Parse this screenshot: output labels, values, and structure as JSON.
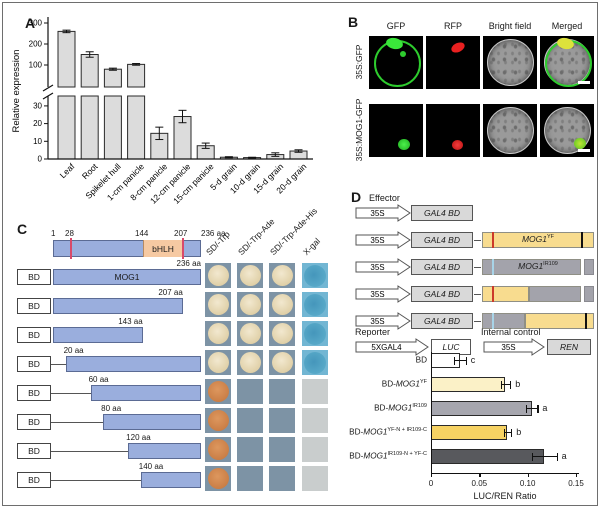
{
  "panel_a": {
    "label": "A",
    "ylabel": "Relative expression",
    "upper_ticks": [
      100,
      200,
      300
    ],
    "lower_ticks": [
      0,
      10,
      20,
      30
    ],
    "categories": [
      "Leaf",
      "Root",
      "Spikelet hull",
      "1-cm panicle",
      "8-cm panicle",
      "12-cm panicle",
      "15-cm panicle",
      "5-d grain",
      "10-d grain",
      "15-d grain",
      "20-d grain"
    ],
    "values": [
      260,
      150,
      80,
      103,
      14.5,
      24,
      7.5,
      1,
      0.8,
      2.5,
      4.5
    ],
    "errors": [
      6,
      13,
      5,
      4,
      3.5,
      3.5,
      1.5,
      0.3,
      0.2,
      1,
      0.7
    ],
    "bar_color": "#dcdcdc"
  },
  "panel_b": {
    "label": "B",
    "col_headers": [
      "GFP",
      "RFP",
      "Bright field",
      "Merged"
    ],
    "row_labels": [
      "35S:GFP",
      "35S:MOG1-GFP"
    ]
  },
  "panel_c": {
    "label": "C",
    "protein": {
      "pos_labels": [
        "1",
        "28",
        "144",
        "207"
      ],
      "end_label": "236 aa",
      "domain_label": "bHLH"
    },
    "media_headers": [
      "SD/-Trp",
      "SD/-Trp-Ade",
      "SD/-Trp-Ade-His",
      "X-gal"
    ],
    "constructs": [
      {
        "bd": "BD",
        "bar_label": "MOG1",
        "aa_label": "236 aa",
        "start": 0,
        "end": 1,
        "spots": [
          "cream",
          "cream",
          "cream",
          "xgal-pos"
        ]
      },
      {
        "bd": "BD",
        "bar_label": "",
        "aa_label": "207 aa",
        "start": 0,
        "end": 0.877,
        "spots": [
          "cream",
          "cream",
          "cream",
          "xgal-pos"
        ]
      },
      {
        "bd": "BD",
        "bar_label": "",
        "aa_label": "143 aa",
        "start": 0,
        "end": 0.606,
        "spots": [
          "cream",
          "cream",
          "cream",
          "xgal-pos"
        ]
      },
      {
        "bd": "BD",
        "bar_label": "",
        "aa_label": "20 aa",
        "start": 0.085,
        "end": 1,
        "spots": [
          "cream",
          "cream",
          "cream",
          "xgal-pos"
        ]
      },
      {
        "bd": "BD",
        "bar_label": "",
        "aa_label": "60 aa",
        "start": 0.254,
        "end": 1,
        "spots": [
          "orange",
          "none",
          "none",
          "xgal-neg"
        ]
      },
      {
        "bd": "BD",
        "bar_label": "",
        "aa_label": "80 aa",
        "start": 0.339,
        "end": 1,
        "spots": [
          "orange",
          "none",
          "none",
          "xgal-neg"
        ]
      },
      {
        "bd": "BD",
        "bar_label": "",
        "aa_label": "120 aa",
        "start": 0.508,
        "end": 1,
        "spots": [
          "orange",
          "none",
          "none",
          "xgal-neg"
        ]
      },
      {
        "bd": "BD",
        "bar_label": "",
        "aa_label": "140 aa",
        "start": 0.593,
        "end": 1,
        "spots": [
          "orange",
          "none",
          "none",
          "xgal-neg"
        ]
      }
    ]
  },
  "panel_d": {
    "label": "D",
    "effector_title": "Effector",
    "reporter_title": "Reporter",
    "internal_control_title": "Internal control",
    "promoter_label": "35S",
    "bd_box_label": "GAL4 BD",
    "reporter_promoter": "5XGAL4",
    "reporter_gene": "LUC",
    "control_promoter": "35S",
    "control_gene": "REN",
    "effectors": [
      {
        "fusion": false,
        "label": "",
        "sup": "",
        "segments": [],
        "markers": [],
        "tail": false
      },
      {
        "fusion": true,
        "label": "MOG1",
        "sup": "YF",
        "segments": [
          [
            "yellow",
            100
          ]
        ],
        "markers": [
          [
            9,
            "red"
          ],
          [
            88,
            "black"
          ]
        ],
        "tail": false
      },
      {
        "fusion": true,
        "label": "MOG1",
        "sup": "IR109",
        "segments": [
          [
            "gray",
            88
          ]
        ],
        "markers": [
          [
            9,
            "blue"
          ]
        ],
        "tail": true
      },
      {
        "fusion": true,
        "label": "",
        "sup": "",
        "segments": [
          [
            "yellow",
            42
          ],
          [
            "gray",
            46
          ]
        ],
        "markers": [
          [
            9,
            "red"
          ]
        ],
        "tail": true
      },
      {
        "fusion": true,
        "label": "",
        "sup": "",
        "segments": [
          [
            "gray",
            38
          ],
          [
            "yellow",
            62
          ]
        ],
        "markers": [
          [
            9,
            "blue"
          ],
          [
            92,
            "black"
          ]
        ],
        "tail": false
      }
    ],
    "colors": {
      "yellow": "#f8dc8f",
      "gray": "#a3a3ab",
      "red": "#cc3a2a",
      "blue": "#a8d4e8",
      "black": "#111111"
    },
    "chart": {
      "xlabel": "LUC/REN Ratio",
      "xticks": [
        "0",
        "0.05",
        "0.10",
        "0.15"
      ],
      "xtick_values": [
        0,
        0.05,
        0.1,
        0.15
      ],
      "xmax": 0.15,
      "bars": [
        {
          "pre": "BD",
          "it": "",
          "sup": "",
          "value": 0.03,
          "error": 0.006,
          "letter": "c",
          "color": "#ffffff"
        },
        {
          "pre": "BD-",
          "it": "MOG1",
          "sup": "YF",
          "value": 0.077,
          "error": 0.005,
          "letter": "b",
          "color": "#fbf1c7"
        },
        {
          "pre": "BD-",
          "it": "MOG1",
          "sup": "IR109",
          "value": 0.104,
          "error": 0.006,
          "letter": "a",
          "color": "#a6a6ae"
        },
        {
          "pre": "BD-",
          "it": "MOG1",
          "sup": "YF-N + IR109-C",
          "value": 0.079,
          "error": 0.004,
          "letter": "b",
          "color": "#f6d263"
        },
        {
          "pre": "BD-",
          "it": "MOG1",
          "sup": "IR109-N + YF-C",
          "value": 0.117,
          "error": 0.013,
          "letter": "a",
          "color": "#58595d"
        }
      ]
    }
  },
  "chart_data": [
    {
      "type": "bar",
      "title": "",
      "xlabel": "",
      "ylabel": "Relative expression",
      "axis_break": true,
      "upper_ylim": [
        35,
        300
      ],
      "lower_ylim": [
        0,
        35
      ],
      "categories": [
        "Leaf",
        "Root",
        "Spikelet hull",
        "1-cm panicle",
        "8-cm panicle",
        "12-cm panicle",
        "15-cm panicle",
        "5-d grain",
        "10-d grain",
        "15-d grain",
        "20-d grain"
      ],
      "values": [
        260,
        150,
        80,
        103,
        14.5,
        24,
        7.5,
        1,
        0.8,
        2.5,
        4.5
      ],
      "errors": [
        6,
        13,
        5,
        4,
        3.5,
        3.5,
        1.5,
        0.3,
        0.2,
        1,
        0.7
      ]
    },
    {
      "type": "bar",
      "orientation": "horizontal",
      "title": "",
      "xlabel": "LUC/REN Ratio",
      "xlim": [
        0,
        0.15
      ],
      "categories": [
        "BD",
        "BD-MOG1YF",
        "BD-MOG1IR109",
        "BD-MOG1YF-N + IR109-C",
        "BD-MOG1IR109-N + YF-C"
      ],
      "values": [
        0.03,
        0.077,
        0.104,
        0.079,
        0.117
      ],
      "errors": [
        0.006,
        0.005,
        0.006,
        0.004,
        0.013
      ],
      "significance_letters": [
        "c",
        "b",
        "a",
        "b",
        "a"
      ]
    }
  ]
}
